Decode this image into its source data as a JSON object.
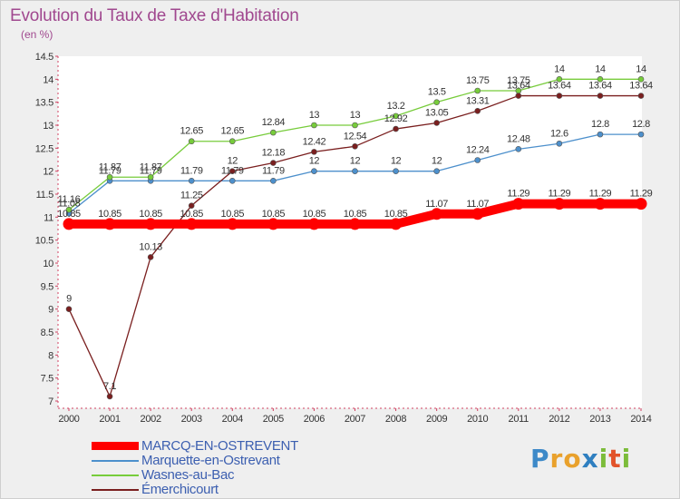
{
  "title": "Evolution du Taux de Taxe d'Habitation",
  "unit": "(en %)",
  "logo_text": "Proxiti",
  "chart_data": {
    "type": "line",
    "title": "Evolution du Taux de Taxe d'Habitation",
    "ylabel": "(en %)",
    "ylim": [
      7,
      14.5
    ],
    "yticks": [
      "7",
      "7.5",
      "8",
      "8.5",
      "9",
      "9.5",
      "10",
      "10.5",
      "11",
      "11.5",
      "12",
      "12.5",
      "13",
      "13.5",
      "14",
      "14.5"
    ],
    "x": [
      "2000",
      "2001",
      "2002",
      "2003",
      "2004",
      "2005",
      "2006",
      "2007",
      "2008",
      "2009",
      "2010",
      "2011",
      "2012",
      "2013",
      "2014"
    ],
    "grid": false,
    "legend": "bottom-left",
    "series": [
      {
        "name": "MARCQ-EN-OSTREVENT",
        "color": "#ff0000",
        "values": [
          10.85,
          10.85,
          10.85,
          10.85,
          10.85,
          10.85,
          10.85,
          10.85,
          10.85,
          11.07,
          11.07,
          11.29,
          11.29,
          11.29,
          11.29
        ],
        "labels": [
          "10.85",
          "10.85",
          "10.85",
          "10.85",
          "10.85",
          "10.85",
          "10.85",
          "10.85",
          "10.85",
          "11.07",
          "11.07",
          "11.29",
          "11.29",
          "11.29",
          "11.29"
        ]
      },
      {
        "name": "Marquette-en-Ostrevant",
        "color": "#4d90cc",
        "values": [
          11.08,
          11.79,
          11.79,
          11.79,
          11.79,
          11.79,
          12,
          12,
          12,
          12,
          12.24,
          12.48,
          12.6,
          12.8,
          12.8
        ],
        "labels": [
          "11.08",
          "11.79",
          "11.79",
          "11.79",
          "11.79",
          "11.79",
          "12",
          "12",
          "12",
          "12",
          "12.24",
          "12.48",
          "12.6",
          "12.8",
          "12.8"
        ]
      },
      {
        "name": "Wasnes-au-Bac",
        "color": "#77cc3b",
        "values": [
          11.16,
          11.87,
          11.87,
          12.65,
          12.65,
          12.84,
          13,
          13,
          13.2,
          13.5,
          13.75,
          13.75,
          14,
          14,
          14
        ],
        "labels": [
          "11.16",
          "11.87",
          "11.87",
          "12.65",
          "12.65",
          "12.84",
          "13",
          "13",
          "13.2",
          "13.5",
          "13.75",
          "13.75",
          "14",
          "14",
          "14"
        ]
      },
      {
        "name": "Émerchicourt",
        "color": "#7a1f1f",
        "values": [
          9,
          7.1,
          10.13,
          11.25,
          12,
          12.18,
          12.42,
          12.54,
          12.92,
          13.05,
          13.31,
          13.64,
          13.64,
          13.64,
          13.64
        ],
        "labels": [
          "9",
          "7.1",
          "10.13",
          "11.25",
          "12",
          "12.18",
          "12.42",
          "12.54",
          "12.92",
          "13.05",
          "13.31",
          "13.64",
          "13.64",
          "13.64",
          "13.64"
        ]
      }
    ]
  }
}
